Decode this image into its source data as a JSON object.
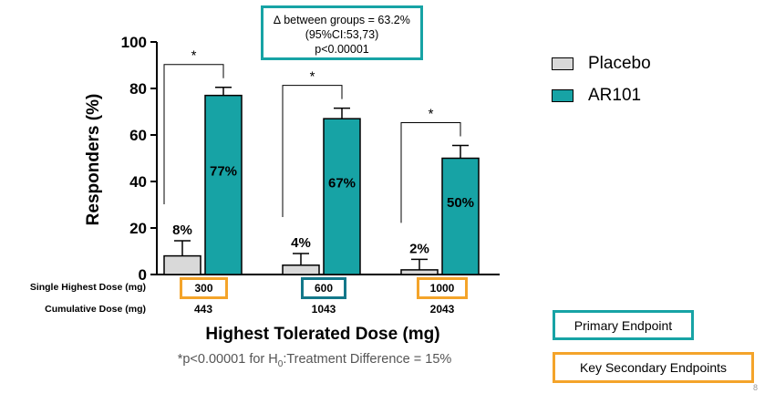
{
  "chart_data": {
    "type": "bar",
    "categories": [
      "300",
      "600",
      "1000"
    ],
    "ylabel": "Responders (%)",
    "xlabel": "Highest Tolerated Dose  (mg)",
    "ylim": [
      0,
      100
    ],
    "yticks": [
      0,
      20,
      40,
      60,
      80,
      100
    ],
    "series": [
      {
        "name": "Placebo",
        "color": "#d9d9d9",
        "values": [
          8,
          4,
          2
        ],
        "error_upper": [
          14.5,
          9,
          6.5
        ],
        "labels": [
          "8%",
          "4%",
          "2%"
        ]
      },
      {
        "name": "AR101",
        "color": "#17a3a5",
        "values": [
          77,
          67,
          50
        ],
        "error_upper": [
          80.5,
          71.5,
          55.5
        ],
        "labels": [
          "77%",
          "67%",
          "50%"
        ]
      }
    ],
    "significance": [
      "*",
      "*",
      "*"
    ],
    "legend_position": "right"
  },
  "delta_box": {
    "line1": "∆ between groups = 63.2%",
    "line2": "(95%CI:53,73)",
    "line3": "p<0.00001"
  },
  "dose_table": {
    "single_label": "Single Highest Dose (mg)",
    "cumulative_label": "Cumulative Dose (mg)",
    "single_values": [
      "300",
      "600",
      "1000"
    ],
    "cumulative_values": [
      "443",
      "1043",
      "2043"
    ]
  },
  "footnote": {
    "prefix": "*p<0.00001 for H",
    "sub": "0",
    "suffix": ":Treatment Difference = 15%"
  },
  "endpoints": {
    "primary": "Primary Endpoint",
    "secondary": "Key Secondary Endpoints"
  },
  "colors": {
    "primary": "#17a3a5",
    "secondary": "#f4a42a",
    "dose_box_primary": "#13788a"
  },
  "page_number": "8"
}
